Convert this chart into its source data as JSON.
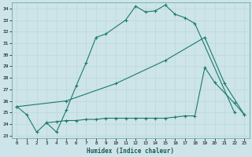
{
  "xlabel": "Humidex (Indice chaleur)",
  "xlim": [
    -0.5,
    23.5
  ],
  "ylim": [
    22.8,
    34.5
  ],
  "yticks": [
    23,
    24,
    25,
    26,
    27,
    28,
    29,
    30,
    31,
    32,
    33,
    34
  ],
  "xticks": [
    0,
    1,
    2,
    3,
    4,
    5,
    6,
    7,
    8,
    9,
    10,
    11,
    12,
    13,
    14,
    15,
    16,
    17,
    18,
    19,
    20,
    21,
    22,
    23
  ],
  "bg_color": "#cde4e8",
  "line_color": "#1a7a6e",
  "line1_x": [
    0,
    1,
    2,
    3,
    4,
    5,
    6,
    7,
    8,
    9,
    11,
    12,
    13,
    14,
    15,
    16,
    17,
    18,
    22
  ],
  "line1_y": [
    25.5,
    24.8,
    23.3,
    24.1,
    23.3,
    25.2,
    27.3,
    29.3,
    31.5,
    31.8,
    33.0,
    34.2,
    33.7,
    33.8,
    34.3,
    33.5,
    33.2,
    32.7,
    25.0
  ],
  "line2_x": [
    0,
    5,
    10,
    15,
    19,
    21,
    23
  ],
  "line2_y": [
    25.5,
    26.0,
    27.5,
    29.5,
    31.5,
    27.5,
    24.8
  ],
  "line3_x": [
    3,
    4,
    5,
    6,
    7,
    8,
    9,
    10,
    11,
    12,
    13,
    14,
    15,
    16,
    17,
    18,
    19,
    20,
    22,
    23
  ],
  "line3_y": [
    24.1,
    24.2,
    24.3,
    24.3,
    24.4,
    24.4,
    24.5,
    24.5,
    24.5,
    24.5,
    24.5,
    24.5,
    24.5,
    24.6,
    24.7,
    24.7,
    28.9,
    27.6,
    25.8,
    24.8
  ]
}
